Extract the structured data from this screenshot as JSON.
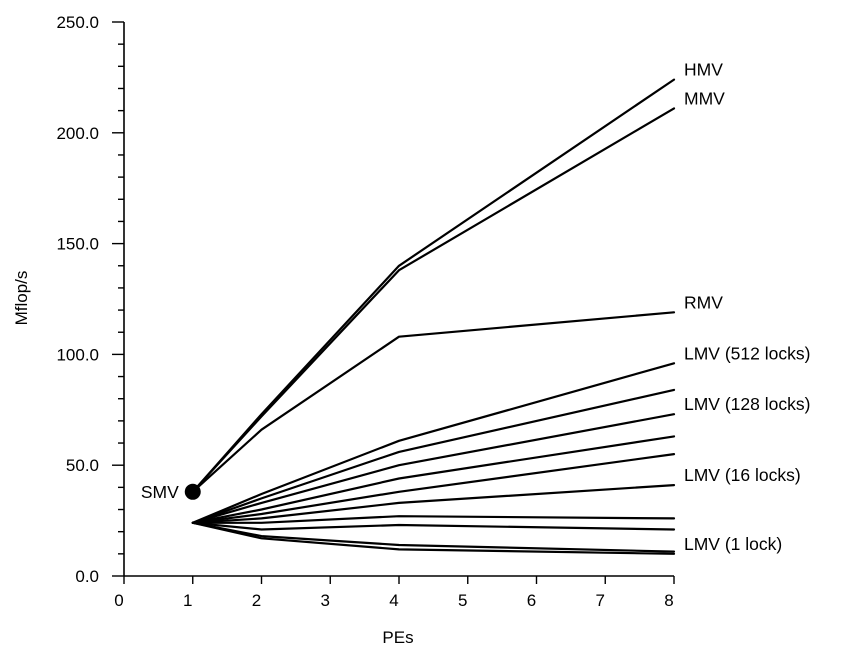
{
  "chart_data": {
    "type": "line",
    "title": "",
    "xlabel": "PEs",
    "ylabel": "Mflop/s",
    "xlim": [
      0,
      8
    ],
    "ylim": [
      0,
      250
    ],
    "x_ticks": [
      "0",
      "1",
      "2",
      "3",
      "4",
      "5",
      "6",
      "7",
      "8"
    ],
    "y_ticks": [
      "0.0",
      "50.0",
      "100.0",
      "150.0",
      "200.0",
      "250.0"
    ],
    "grid": false,
    "legend": "none",
    "line_color": "#000000",
    "x": [
      1,
      2,
      4,
      8
    ],
    "series": [
      {
        "name": "HMV",
        "values": [
          38,
          73,
          140,
          224
        ]
      },
      {
        "name": "MMV",
        "values": [
          38,
          72,
          138,
          211
        ]
      },
      {
        "name": "RMV",
        "values": [
          38,
          66,
          108,
          119
        ]
      },
      {
        "name": "LMV (512 locks)",
        "values": [
          24,
          37,
          61,
          96
        ]
      },
      {
        "name": "",
        "values": [
          24,
          35,
          56,
          84
        ]
      },
      {
        "name": "LMV (128  locks)",
        "values": [
          24,
          33,
          50,
          73
        ]
      },
      {
        "name": "",
        "values": [
          24,
          30,
          44,
          63
        ]
      },
      {
        "name": "",
        "values": [
          24,
          28,
          38,
          55
        ]
      },
      {
        "name": "LMV (16 locks)",
        "values": [
          24,
          26,
          33,
          41
        ]
      },
      {
        "name": "",
        "values": [
          24,
          24,
          27,
          26
        ]
      },
      {
        "name": "",
        "values": [
          24,
          21,
          23,
          21
        ]
      },
      {
        "name": "",
        "values": [
          24,
          18,
          14,
          11
        ]
      },
      {
        "name": "LMV (1 lock)",
        "values": [
          24,
          17,
          12,
          10
        ]
      }
    ],
    "points": [
      {
        "label": "SMV",
        "x": 1,
        "y": 38
      }
    ]
  }
}
